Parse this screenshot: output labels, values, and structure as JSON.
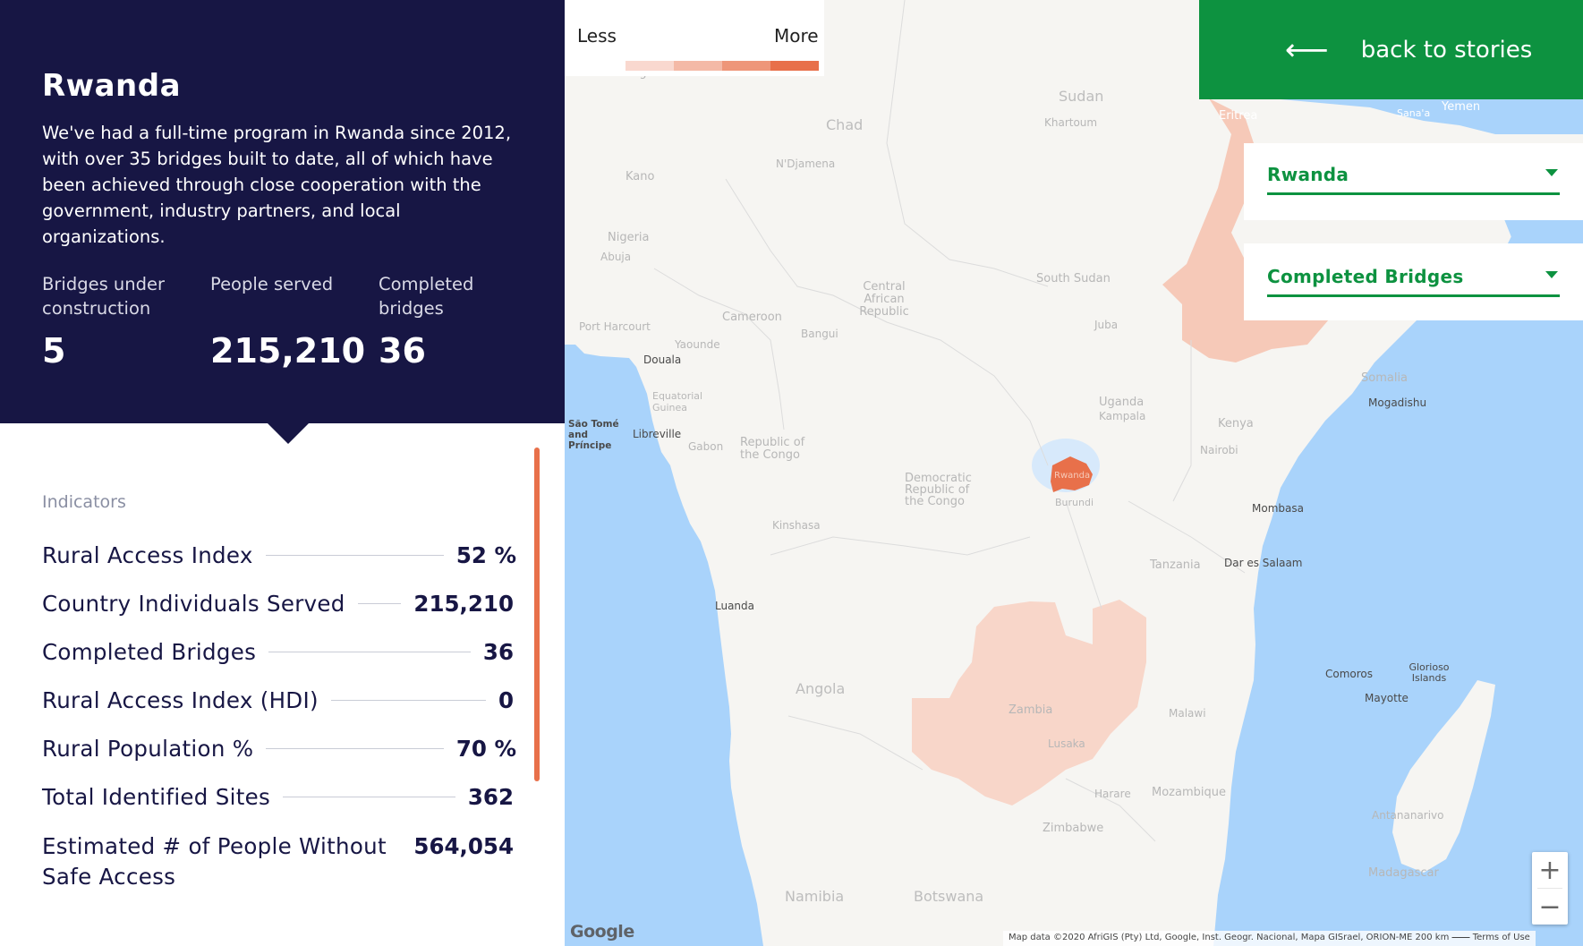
{
  "country": {
    "title": "Rwanda",
    "description": "We've had a full-time program in Rwanda since 2012, with over 35 bridges built to date, all of which have been achieved through close cooperation with the government, industry partners, and local organizations."
  },
  "stats": [
    {
      "label": "Bridges under construction",
      "value": "5"
    },
    {
      "label": "People served",
      "value": "215,210"
    },
    {
      "label": "Completed bridges",
      "value": "36"
    }
  ],
  "indicators": {
    "heading": "Indicators",
    "items": [
      {
        "name": "Rural Access Index",
        "value": "52 %"
      },
      {
        "name": "Country Individuals Served",
        "value": "215,210"
      },
      {
        "name": "Completed Bridges",
        "value": "36"
      },
      {
        "name": "Rural Access Index (HDI)",
        "value": "0"
      },
      {
        "name": "Rural Population %",
        "value": "70 %"
      },
      {
        "name": "Total Identified Sites",
        "value": "362"
      },
      {
        "name": "Estimated # of People Without Safe Access",
        "value": "564,054"
      }
    ]
  },
  "legend": {
    "less": "Less",
    "more": "More",
    "scale_colors": [
      "#f9d8cf",
      "#f4b9a6",
      "#ee9679",
      "#e8704a"
    ]
  },
  "back_button": {
    "arrow": "⟵",
    "label": "back to stories"
  },
  "country_select": {
    "value": "Rwanda"
  },
  "metric_select": {
    "value": "Completed Bridges"
  },
  "zoom": {
    "in": "+",
    "out": "−"
  },
  "map": {
    "labels": {
      "niger": "Niger",
      "chad": "Chad",
      "sudan": "Sudan",
      "khartoum": "Khartoum",
      "ndjamena": "N'Djamena",
      "kano": "Kano",
      "nigeria": "Nigeria",
      "abuja": "Abuja",
      "south_sudan": "South Sudan",
      "juba": "Juba",
      "car": "Central African Republic",
      "cameroon": "Cameroon",
      "yaounde": "Yaounde",
      "bangui": "Bangui",
      "port_harcourt": "Port Harcourt",
      "douala": "Douala",
      "eq_guinea": "Equatorial Guinea",
      "sao_tome": "São Tomé and Príncipe",
      "libreville": "Libreville",
      "gabon": "Gabon",
      "congo": "Republic of the Congo",
      "drc": "Democratic Republic of the Congo",
      "uganda": "Uganda",
      "kampala": "Kampala",
      "kenya": "Kenya",
      "nairobi": "Nairobi",
      "rwanda": "Rwanda",
      "burundi": "Burundi",
      "somalia": "Somalia",
      "mogadishu": "Mogadishu",
      "mombasa": "Mombasa",
      "tanzania": "Tanzania",
      "dar": "Dar es Salaam",
      "kinshasa": "Kinshasa",
      "luanda": "Luanda",
      "angola": "Angola",
      "zambia": "Zambia",
      "lusaka": "Lusaka",
      "malawi": "Malawi",
      "comoros": "Comoros",
      "glorioso": "Glorioso Islands",
      "mayotte": "Mayotte",
      "harare": "Harare",
      "mozambique": "Mozambique",
      "zimbabwe": "Zimbabwe",
      "antananarivo": "Antananarivo",
      "madagascar": "Madagascar",
      "namibia": "Namibia",
      "botswana": "Botswana",
      "eritrea": "Eritrea",
      "yemen": "Yemen",
      "sanaa": "Sana'a"
    },
    "google": "Google",
    "attribution": "Map data ©2020 AfriGIS (Pty) Ltd, Google, Inst. Geogr. Nacional, Mapa GISrael, ORION-ME   200 km ⎯⎯⎯⎯   Terms of Use",
    "colors": {
      "ocean": "#a9d3fb",
      "land": "#f6f5f2",
      "rwanda": "#e8704a",
      "ethiopia": "#f6c9b8",
      "zambia": "#f8d6c9"
    }
  }
}
